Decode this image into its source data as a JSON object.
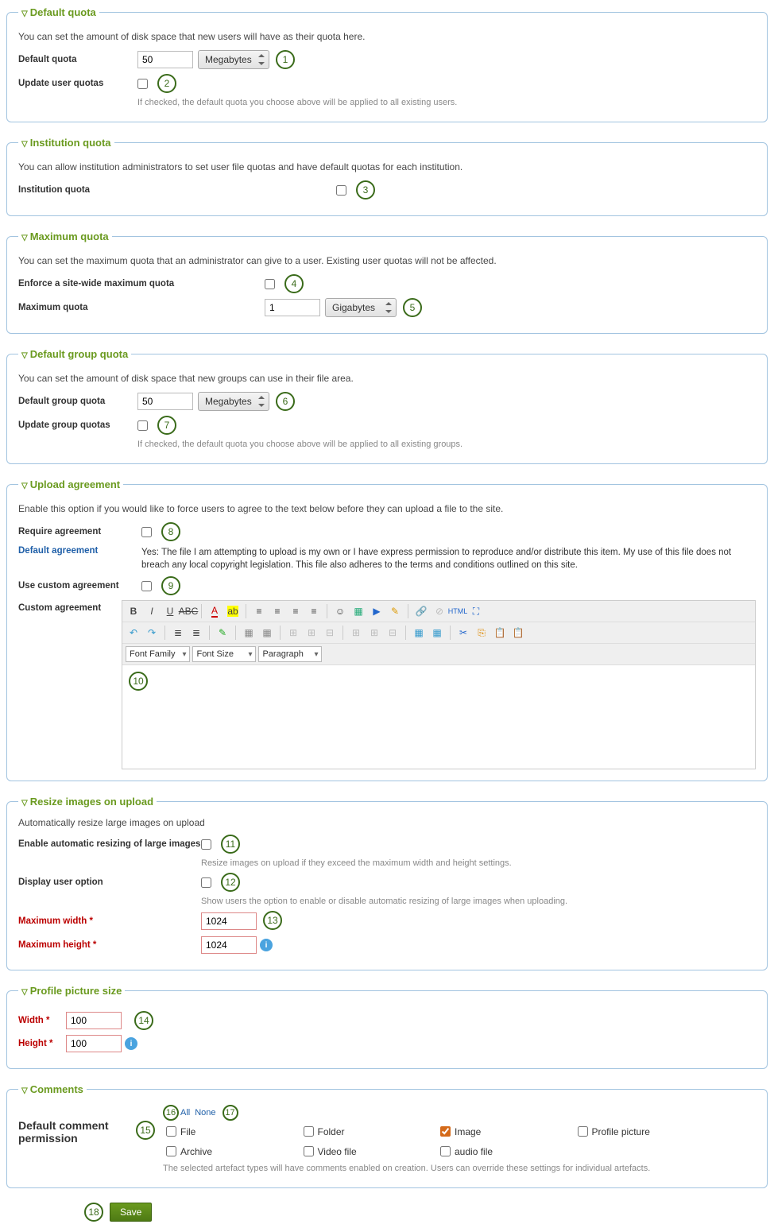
{
  "colors": {
    "legend": "#6a9a1f",
    "border": "#a2c4e0",
    "badge_border": "#3a6b1a",
    "link": "#1f5fa8",
    "required": "#b00",
    "help": "#888",
    "save_bg": "#6a9a1f"
  },
  "default_quota": {
    "legend": "Default quota",
    "desc": "You can set the amount of disk space that new users will have as their quota here.",
    "label_quota": "Default quota",
    "value": "50",
    "unit": "Megabytes",
    "label_update": "Update user quotas",
    "help_update": "If checked, the default quota you choose above will be applied to all existing users.",
    "badge1": "1",
    "badge2": "2"
  },
  "institution_quota": {
    "legend": "Institution quota",
    "desc": "You can allow institution administrators to set user file quotas and have default quotas for each institution.",
    "label": "Institution quota",
    "badge": "3"
  },
  "maximum_quota": {
    "legend": "Maximum quota",
    "desc": "You can set the maximum quota that an administrator can give to a user. Existing user quotas will not be affected.",
    "label_enforce": "Enforce a site-wide maximum quota",
    "label_max": "Maximum quota",
    "value": "1",
    "unit": "Gigabytes",
    "badge4": "4",
    "badge5": "5"
  },
  "group_quota": {
    "legend": "Default group quota",
    "desc": "You can set the amount of disk space that new groups can use in their file area.",
    "label_quota": "Default group quota",
    "value": "50",
    "unit": "Megabytes",
    "label_update": "Update group quotas",
    "help_update": "If checked, the default quota you choose above will be applied to all existing groups.",
    "badge6": "6",
    "badge7": "7"
  },
  "upload_agreement": {
    "legend": "Upload agreement",
    "desc": "Enable this option if you would like to force users to agree to the text below before they can upload a file to the site.",
    "label_require": "Require agreement",
    "label_default": "Default agreement",
    "default_text": "Yes: The file I am attempting to upload is my own or I have express permission to reproduce and/or distribute this item. My use of this file does not breach any local copyright legislation. This file also adheres to the terms and conditions outlined on this site.",
    "label_custom_cb": "Use custom agreement",
    "label_custom": "Custom agreement",
    "badge8": "8",
    "badge9": "9",
    "badge10": "10",
    "sel_font_family": "Font Family",
    "sel_font_size": "Font Size",
    "sel_paragraph": "Paragraph"
  },
  "resize": {
    "legend": "Resize images on upload",
    "desc": "Automatically resize large images on upload",
    "label_enable": "Enable automatic resizing of large images",
    "help_enable": "Resize images on upload if they exceed the maximum width and height settings.",
    "label_display": "Display user option",
    "help_display": "Show users the option to enable or disable automatic resizing of large images when uploading.",
    "label_maxw": "Maximum width *",
    "value_maxw": "1024",
    "label_maxh": "Maximum height *",
    "value_maxh": "1024",
    "badge11": "11",
    "badge12": "12",
    "badge13": "13"
  },
  "profile_size": {
    "legend": "Profile picture size",
    "label_w": "Width *",
    "value_w": "100",
    "label_h": "Height *",
    "value_h": "100",
    "badge14": "14"
  },
  "comments": {
    "legend": "Comments",
    "label": "Default comment permission",
    "all": "All",
    "none": "None",
    "items": [
      {
        "label": "File",
        "checked": false
      },
      {
        "label": "Folder",
        "checked": false
      },
      {
        "label": "Image",
        "checked": true
      },
      {
        "label": "Profile picture",
        "checked": false
      },
      {
        "label": "Archive",
        "checked": false
      },
      {
        "label": "Video file",
        "checked": false
      },
      {
        "label": "audio file",
        "checked": false
      }
    ],
    "help": "The selected artefact types will have comments enabled on creation. Users can override these settings for individual artefacts.",
    "badge15": "15",
    "badge16": "16",
    "badge17": "17"
  },
  "save": {
    "label": "Save",
    "badge18": "18"
  }
}
